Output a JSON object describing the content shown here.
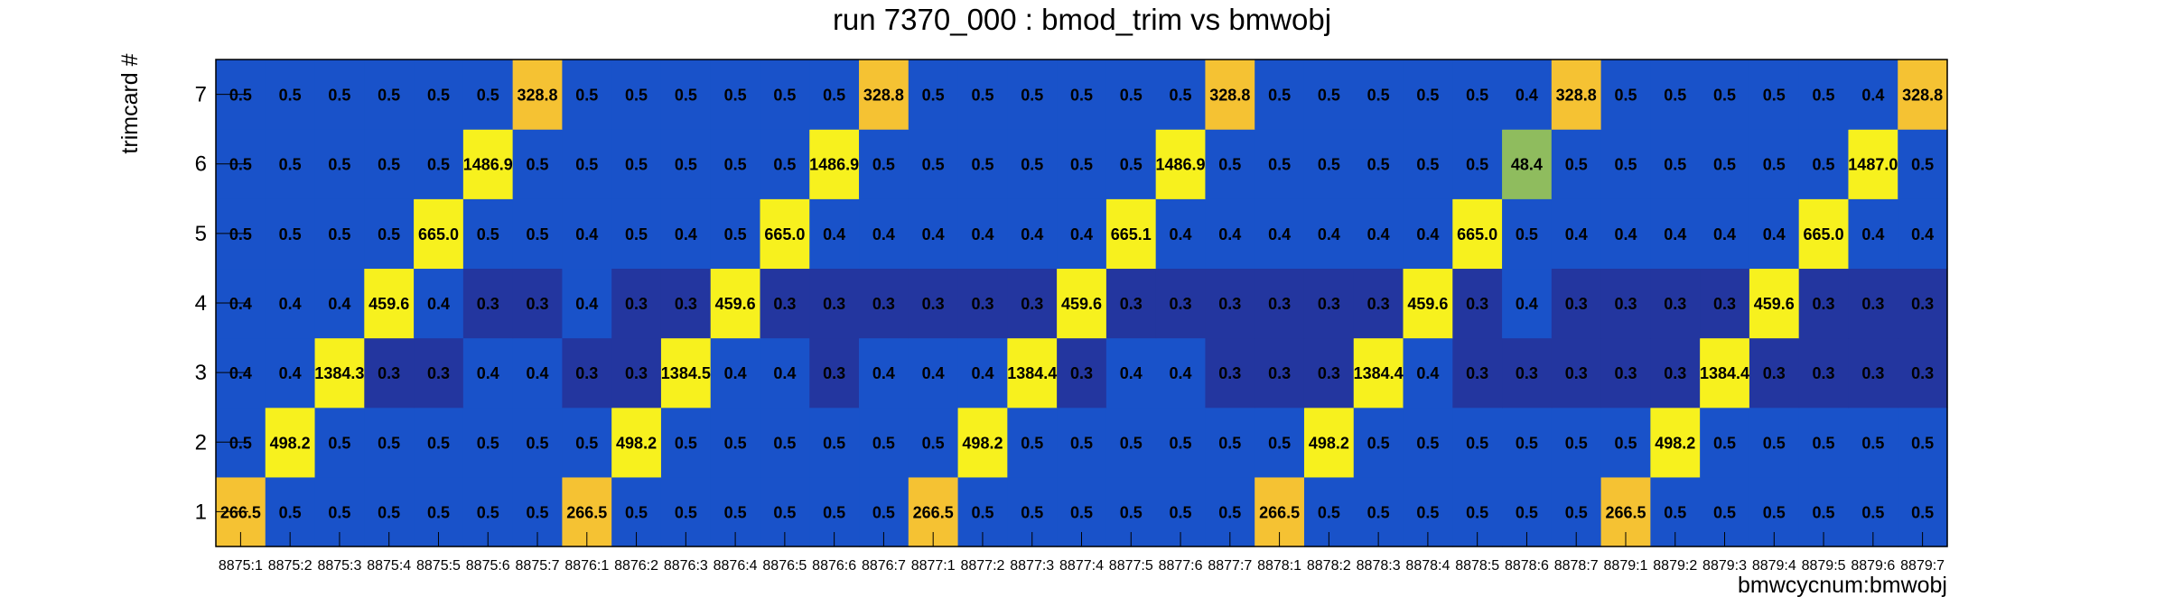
{
  "chart_data": {
    "type": "heatmap",
    "title": "run 7370_000 : bmod_trim vs bmwobj",
    "xlabel": "bmwcycnum:bmwobj",
    "ylabel": "trimcard #",
    "x_categories": [
      "8875:1",
      "8875:2",
      "8875:3",
      "8875:4",
      "8875:5",
      "8875:6",
      "8875:7",
      "8876:1",
      "8876:2",
      "8876:3",
      "8876:4",
      "8876:5",
      "8876:6",
      "8876:7",
      "8877:1",
      "8877:2",
      "8877:3",
      "8877:4",
      "8877:5",
      "8877:6",
      "8877:7",
      "8878:1",
      "8878:2",
      "8878:3",
      "8878:4",
      "8878:5",
      "8878:6",
      "8878:7",
      "8879:1",
      "8879:2",
      "8879:3",
      "8879:4",
      "8879:5",
      "8879:6",
      "8879:7"
    ],
    "y_categories": [
      "1",
      "2",
      "3",
      "4",
      "5",
      "6",
      "7"
    ],
    "labels": [
      [
        "266.5",
        "0.5",
        "0.5",
        "0.5",
        "0.5",
        "0.5",
        "0.5",
        "266.5",
        "0.5",
        "0.5",
        "0.5",
        "0.5",
        "0.5",
        "0.5",
        "266.5",
        "0.5",
        "0.5",
        "0.5",
        "0.5",
        "0.5",
        "0.5",
        "266.5",
        "0.5",
        "0.5",
        "0.5",
        "0.5",
        "0.5",
        "0.5",
        "266.5",
        "0.5",
        "0.5",
        "0.5",
        "0.5",
        "0.5",
        "0.5"
      ],
      [
        "0.5",
        "498.2",
        "0.5",
        "0.5",
        "0.5",
        "0.5",
        "0.5",
        "0.5",
        "498.2",
        "0.5",
        "0.5",
        "0.5",
        "0.5",
        "0.5",
        "0.5",
        "498.2",
        "0.5",
        "0.5",
        "0.5",
        "0.5",
        "0.5",
        "0.5",
        "498.2",
        "0.5",
        "0.5",
        "0.5",
        "0.5",
        "0.5",
        "0.5",
        "498.2",
        "0.5",
        "0.5",
        "0.5",
        "0.5",
        "0.5"
      ],
      [
        "0.4",
        "0.4",
        "1384.3",
        "0.3",
        "0.3",
        "0.4",
        "0.4",
        "0.3",
        "0.3",
        "1384.5",
        "0.4",
        "0.4",
        "0.3",
        "0.4",
        "0.4",
        "0.4",
        "1384.4",
        "0.3",
        "0.4",
        "0.4",
        "0.3",
        "0.3",
        "0.3",
        "1384.4",
        "0.4",
        "0.3",
        "0.3",
        "0.3",
        "0.3",
        "0.3",
        "1384.4",
        "0.3",
        "0.3",
        "0.3",
        "0.3"
      ],
      [
        "0.4",
        "0.4",
        "0.4",
        "459.6",
        "0.4",
        "0.3",
        "0.3",
        "0.4",
        "0.3",
        "0.3",
        "459.6",
        "0.3",
        "0.3",
        "0.3",
        "0.3",
        "0.3",
        "0.3",
        "459.6",
        "0.3",
        "0.3",
        "0.3",
        "0.3",
        "0.3",
        "0.3",
        "459.6",
        "0.3",
        "0.4",
        "0.3",
        "0.3",
        "0.3",
        "0.3",
        "459.6",
        "0.3",
        "0.3",
        "0.3"
      ],
      [
        "0.5",
        "0.5",
        "0.5",
        "0.5",
        "665.0",
        "0.5",
        "0.5",
        "0.4",
        "0.5",
        "0.4",
        "0.5",
        "665.0",
        "0.4",
        "0.4",
        "0.4",
        "0.4",
        "0.4",
        "0.4",
        "665.1",
        "0.4",
        "0.4",
        "0.4",
        "0.4",
        "0.4",
        "0.4",
        "665.0",
        "0.5",
        "0.4",
        "0.4",
        "0.4",
        "0.4",
        "0.4",
        "665.0",
        "0.4",
        "0.4"
      ],
      [
        "0.5",
        "0.5",
        "0.5",
        "0.5",
        "0.5",
        "1486.9",
        "0.5",
        "0.5",
        "0.5",
        "0.5",
        "0.5",
        "0.5",
        "1486.9",
        "0.5",
        "0.5",
        "0.5",
        "0.5",
        "0.5",
        "0.5",
        "1486.9",
        "0.5",
        "0.5",
        "0.5",
        "0.5",
        "0.5",
        "0.5",
        "48.4",
        "0.5",
        "0.5",
        "0.5",
        "0.5",
        "0.5",
        "0.5",
        "1487.0",
        "0.5"
      ],
      [
        "0.5",
        "0.5",
        "0.5",
        "0.5",
        "0.5",
        "0.5",
        "328.8",
        "0.5",
        "0.5",
        "0.5",
        "0.5",
        "0.5",
        "0.5",
        "328.8",
        "0.5",
        "0.5",
        "0.5",
        "0.5",
        "0.5",
        "0.5",
        "328.8",
        "0.5",
        "0.5",
        "0.5",
        "0.5",
        "0.5",
        "0.4",
        "328.8",
        "0.5",
        "0.5",
        "0.5",
        "0.5",
        "0.5",
        "0.4",
        "328.8"
      ]
    ],
    "colors": {
      "background": "#ffffff",
      "low_0.3": "#23369f",
      "low_0.4_0.5": "#1952c9",
      "mid_48": "#8fbc5e",
      "high_300": "#f5c233",
      "high_450_plus": "#f7f11e"
    },
    "grid": false,
    "legend": "none"
  }
}
